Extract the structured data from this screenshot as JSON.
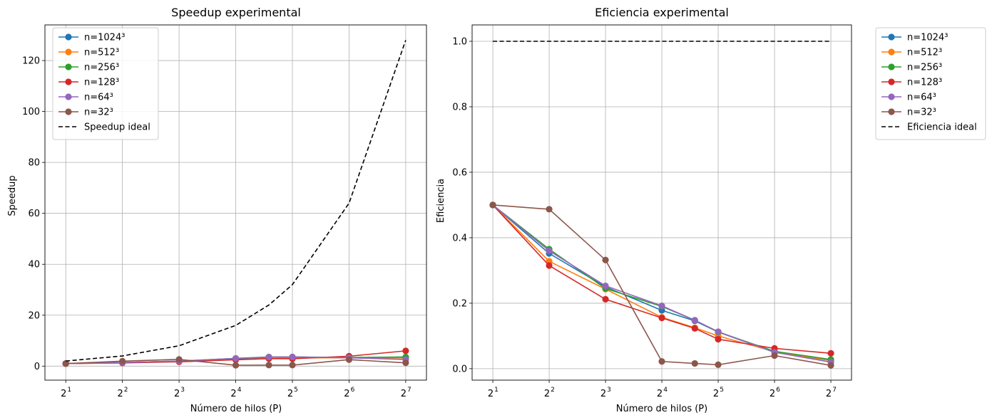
{
  "chart_data": [
    {
      "type": "line",
      "title": "Speedup experimental",
      "xlabel": "Número de hilos (P)",
      "ylabel": "Speedup",
      "x_scale": "log2",
      "x": [
        2,
        4,
        8,
        16,
        24,
        32,
        64,
        128
      ],
      "x_ticks": [
        {
          "value": 2,
          "base": "2",
          "exp": "1"
        },
        {
          "value": 4,
          "base": "2",
          "exp": "2"
        },
        {
          "value": 8,
          "base": "2",
          "exp": "3"
        },
        {
          "value": 16,
          "base": "2",
          "exp": "4"
        },
        {
          "value": 32,
          "base": "2",
          "exp": "5"
        },
        {
          "value": 64,
          "base": "2",
          "exp": "6"
        },
        {
          "value": 128,
          "base": "2",
          "exp": "7"
        }
      ],
      "y_ticks": [
        "0",
        "20",
        "40",
        "60",
        "80",
        "100",
        "120"
      ],
      "y_tick_values": [
        0,
        20,
        40,
        60,
        80,
        100,
        120
      ],
      "ylim": [
        -5.5,
        134
      ],
      "xlim": [
        1.55,
        165
      ],
      "grid": true,
      "legend_position": "top-left",
      "series": [
        {
          "name": "n=1024³",
          "color": "#1f77b4",
          "marker": "circle",
          "values": [
            1.0,
            1.4,
            2.0,
            2.85,
            3.5,
            3.6,
            3.2,
            3.2
          ]
        },
        {
          "name": "n=512³",
          "color": "#ff7f0e",
          "marker": "circle",
          "values": [
            1.0,
            1.3,
            1.95,
            2.5,
            3.0,
            3.2,
            3.3,
            3.2
          ]
        },
        {
          "name": "n=256³",
          "color": "#2ca02c",
          "marker": "circle",
          "values": [
            1.0,
            1.45,
            1.95,
            3.05,
            3.6,
            3.6,
            3.4,
            3.6
          ]
        },
        {
          "name": "n=128³",
          "color": "#d62728",
          "marker": "circle",
          "values": [
            1.0,
            1.25,
            1.7,
            2.5,
            2.95,
            2.9,
            3.9,
            6.0
          ]
        },
        {
          "name": "n=64³",
          "color": "#9467bd",
          "marker": "circle",
          "values": [
            1.0,
            1.45,
            2.0,
            3.05,
            3.55,
            3.6,
            3.3,
            2.6
          ]
        },
        {
          "name": "n=32³",
          "color": "#8c564b",
          "marker": "circle",
          "values": [
            1.0,
            1.95,
            2.65,
            0.35,
            0.4,
            0.4,
            2.55,
            1.3
          ]
        },
        {
          "name": "Speedup ideal",
          "color": "#000000",
          "marker": "none",
          "dashed": true,
          "values": [
            2,
            4,
            8,
            16,
            24,
            32,
            64,
            128
          ]
        }
      ]
    },
    {
      "type": "line",
      "title": "Eficiencia experimental",
      "xlabel": "Número de hilos (P)",
      "ylabel": "Eficiencia",
      "x_scale": "log2",
      "x": [
        2,
        4,
        8,
        16,
        24,
        32,
        64,
        128
      ],
      "x_ticks": [
        {
          "value": 2,
          "base": "2",
          "exp": "1"
        },
        {
          "value": 4,
          "base": "2",
          "exp": "2"
        },
        {
          "value": 8,
          "base": "2",
          "exp": "3"
        },
        {
          "value": 16,
          "base": "2",
          "exp": "4"
        },
        {
          "value": 32,
          "base": "2",
          "exp": "5"
        },
        {
          "value": 64,
          "base": "2",
          "exp": "6"
        },
        {
          "value": 128,
          "base": "2",
          "exp": "7"
        }
      ],
      "y_ticks": [
        "0.0",
        "0.2",
        "0.4",
        "0.6",
        "0.8",
        "1.0"
      ],
      "y_tick_values": [
        0,
        0.2,
        0.4,
        0.6,
        0.8,
        1.0
      ],
      "ylim": [
        -0.035,
        1.05
      ],
      "xlim": [
        1.55,
        165
      ],
      "grid": true,
      "legend_position": "outside-right",
      "series": [
        {
          "name": "n=1024³",
          "color": "#1f77b4",
          "marker": "circle",
          "values": [
            0.5,
            0.352,
            0.25,
            0.178,
            0.146,
            0.112,
            0.05,
            0.025
          ]
        },
        {
          "name": "n=512³",
          "color": "#ff7f0e",
          "marker": "circle",
          "values": [
            0.5,
            0.328,
            0.243,
            0.157,
            0.125,
            0.1,
            0.052,
            0.025
          ]
        },
        {
          "name": "n=256³",
          "color": "#2ca02c",
          "marker": "circle",
          "values": [
            0.5,
            0.365,
            0.245,
            0.19,
            0.148,
            0.112,
            0.053,
            0.028
          ]
        },
        {
          "name": "n=128³",
          "color": "#d62728",
          "marker": "circle",
          "values": [
            0.5,
            0.315,
            0.212,
            0.155,
            0.123,
            0.09,
            0.062,
            0.047
          ]
        },
        {
          "name": "n=64³",
          "color": "#9467bd",
          "marker": "circle",
          "values": [
            0.5,
            0.36,
            0.253,
            0.192,
            0.148,
            0.113,
            0.05,
            0.02
          ]
        },
        {
          "name": "n=32³",
          "color": "#8c564b",
          "marker": "circle",
          "values": [
            0.5,
            0.487,
            0.332,
            0.022,
            0.016,
            0.012,
            0.04,
            0.01
          ]
        },
        {
          "name": "Eficiencia ideal",
          "color": "#000000",
          "marker": "none",
          "dashed": true,
          "values": [
            1,
            1,
            1,
            1,
            1,
            1,
            1,
            1
          ]
        }
      ]
    }
  ]
}
